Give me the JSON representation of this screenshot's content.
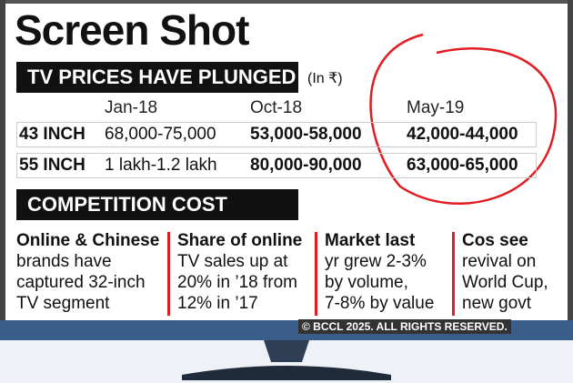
{
  "header": {
    "title": "Screen Shot"
  },
  "prices": {
    "banner": "TV PRICES HAVE PLUNGED",
    "unit": "(In ₹)",
    "columns": [
      "Jan-18",
      "Oct-18",
      "May-19"
    ],
    "rows": [
      [
        "43 INCH",
        "68,000-75,000",
        "53,000-58,000",
        "42,000-44,000"
      ],
      [
        "55 INCH",
        "1 lakh-1.2 lakh",
        "80,000-90,000",
        "63,000-65,000"
      ]
    ]
  },
  "competition": {
    "banner": "COMPETITION COST",
    "columns": [
      {
        "heading": "Online & Chinese",
        "lines": [
          "brands have",
          "captured 32-inch",
          "TV segment"
        ]
      },
      {
        "heading": "Share of online",
        "lines": [
          "TV sales up at",
          "20% in ’18 from",
          "12% in ’17"
        ]
      },
      {
        "heading": "Market last",
        "lines": [
          "yr grew 2-3%",
          "by volume,",
          "7-8% by value"
        ]
      },
      {
        "heading": "Cos see",
        "lines": [
          "revival on",
          "World Cup,",
          "new govt"
        ]
      }
    ]
  },
  "footer": {
    "copyright": "© BCCL 2025. ALL RIGHTS RESERVED."
  }
}
